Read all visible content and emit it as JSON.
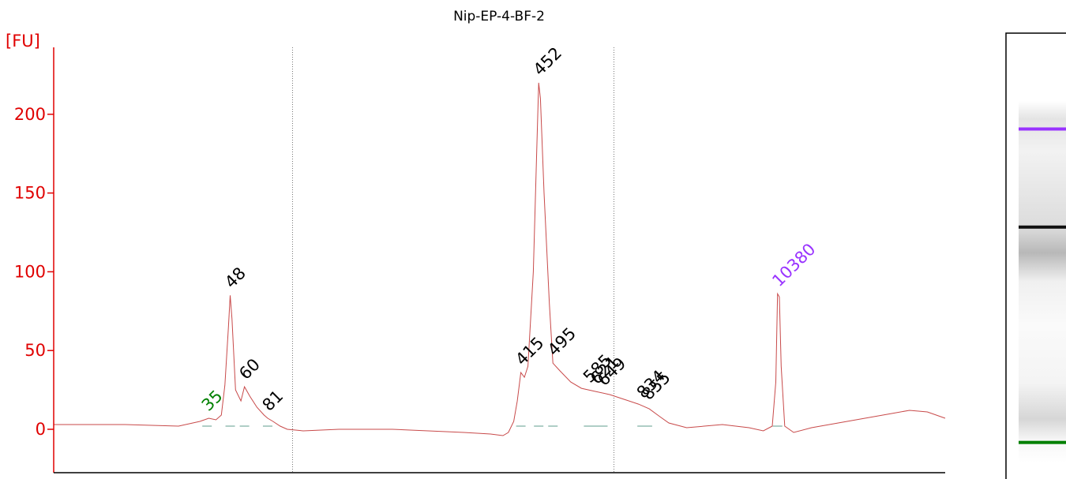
{
  "chart_data": {
    "type": "line",
    "title": "Nip-EP-4-BF-2",
    "ylabel": "[FU]",
    "ylim": [
      -28,
      242
    ],
    "yticks": [
      0,
      50,
      100,
      150,
      200
    ],
    "xlabel": "",
    "grid": "vertical dotted separators",
    "legend": "none",
    "series": [
      {
        "points": [
          [
            0,
            3
          ],
          [
            40,
            3
          ],
          [
            70,
            2
          ],
          [
            82,
            5
          ],
          [
            87,
            7
          ],
          [
            91,
            6
          ],
          [
            94,
            9
          ],
          [
            96,
            28
          ],
          [
            98,
            65
          ],
          [
            99,
            85
          ],
          [
            100,
            70
          ],
          [
            102,
            25
          ],
          [
            105,
            18
          ],
          [
            107,
            27
          ],
          [
            110,
            21
          ],
          [
            114,
            14
          ],
          [
            118,
            9
          ],
          [
            120,
            7
          ],
          [
            123,
            5
          ],
          [
            127,
            2
          ],
          [
            131,
            0
          ],
          [
            140,
            -1
          ],
          [
            160,
            0
          ],
          [
            190,
            0
          ],
          [
            210,
            -1
          ],
          [
            230,
            -2
          ],
          [
            245,
            -3
          ],
          [
            252,
            -4
          ],
          [
            255,
            -2
          ],
          [
            258,
            5
          ],
          [
            260,
            18
          ],
          [
            262,
            36
          ],
          [
            264,
            33
          ],
          [
            266,
            40
          ],
          [
            269,
            100
          ],
          [
            271,
            180
          ],
          [
            272,
            220
          ],
          [
            273,
            210
          ],
          [
            275,
            150
          ],
          [
            278,
            80
          ],
          [
            280,
            42
          ],
          [
            284,
            37
          ],
          [
            290,
            30
          ],
          [
            296,
            26
          ],
          [
            304,
            24
          ],
          [
            312,
            22
          ],
          [
            320,
            19
          ],
          [
            328,
            16
          ],
          [
            334,
            13
          ],
          [
            340,
            8
          ],
          [
            345,
            4
          ],
          [
            355,
            1
          ],
          [
            375,
            3
          ],
          [
            390,
            1
          ],
          [
            398,
            -1
          ],
          [
            403,
            2
          ],
          [
            405,
            30
          ],
          [
            406,
            86
          ],
          [
            407,
            84
          ],
          [
            408,
            40
          ],
          [
            410,
            2
          ],
          [
            415,
            -2
          ],
          [
            425,
            1
          ],
          [
            445,
            5
          ],
          [
            470,
            10
          ],
          [
            480,
            12
          ],
          [
            490,
            11
          ],
          [
            500,
            7
          ]
        ]
      }
    ],
    "peaks": [
      {
        "label": "35",
        "x": 86,
        "y": 7,
        "color": "#008000"
      },
      {
        "label": "48",
        "x": 99,
        "y": 85,
        "color": "#000000"
      },
      {
        "label": "60",
        "x": 107,
        "y": 27,
        "color": "#000000"
      },
      {
        "label": "81",
        "x": 120,
        "y": 7,
        "color": "#000000"
      },
      {
        "label": "415",
        "x": 262,
        "y": 36,
        "color": "#000000"
      },
      {
        "label": "452",
        "x": 272,
        "y": 220,
        "color": "#000000"
      },
      {
        "label": "495",
        "x": 280,
        "y": 42,
        "color": "#000000"
      },
      {
        "label": "585",
        "x": 300,
        "y": 25,
        "color": "#000000"
      },
      {
        "label": "621",
        "x": 304,
        "y": 24,
        "color": "#000000"
      },
      {
        "label": "649",
        "x": 308,
        "y": 23,
        "color": "#000000"
      },
      {
        "label": "834",
        "x": 330,
        "y": 15,
        "color": "#000000"
      },
      {
        "label": "855",
        "x": 333,
        "y": 14,
        "color": "#000000"
      },
      {
        "label": "10380",
        "x": 406,
        "y": 86,
        "color": "#9933ff"
      }
    ],
    "colors": {
      "trace": "#c84a4a",
      "axis": "#e00000",
      "marker_lower": "#008000",
      "marker_upper": "#9933ff",
      "separator": "#777777"
    }
  },
  "gel": {
    "bands": [
      {
        "name": "upper-marker",
        "pos": 0.215,
        "color": "#9933ff"
      },
      {
        "name": "main-band",
        "pos": 0.435,
        "color": "#111111"
      },
      {
        "name": "lower-marker",
        "pos": 0.918,
        "color": "#008000"
      }
    ]
  }
}
